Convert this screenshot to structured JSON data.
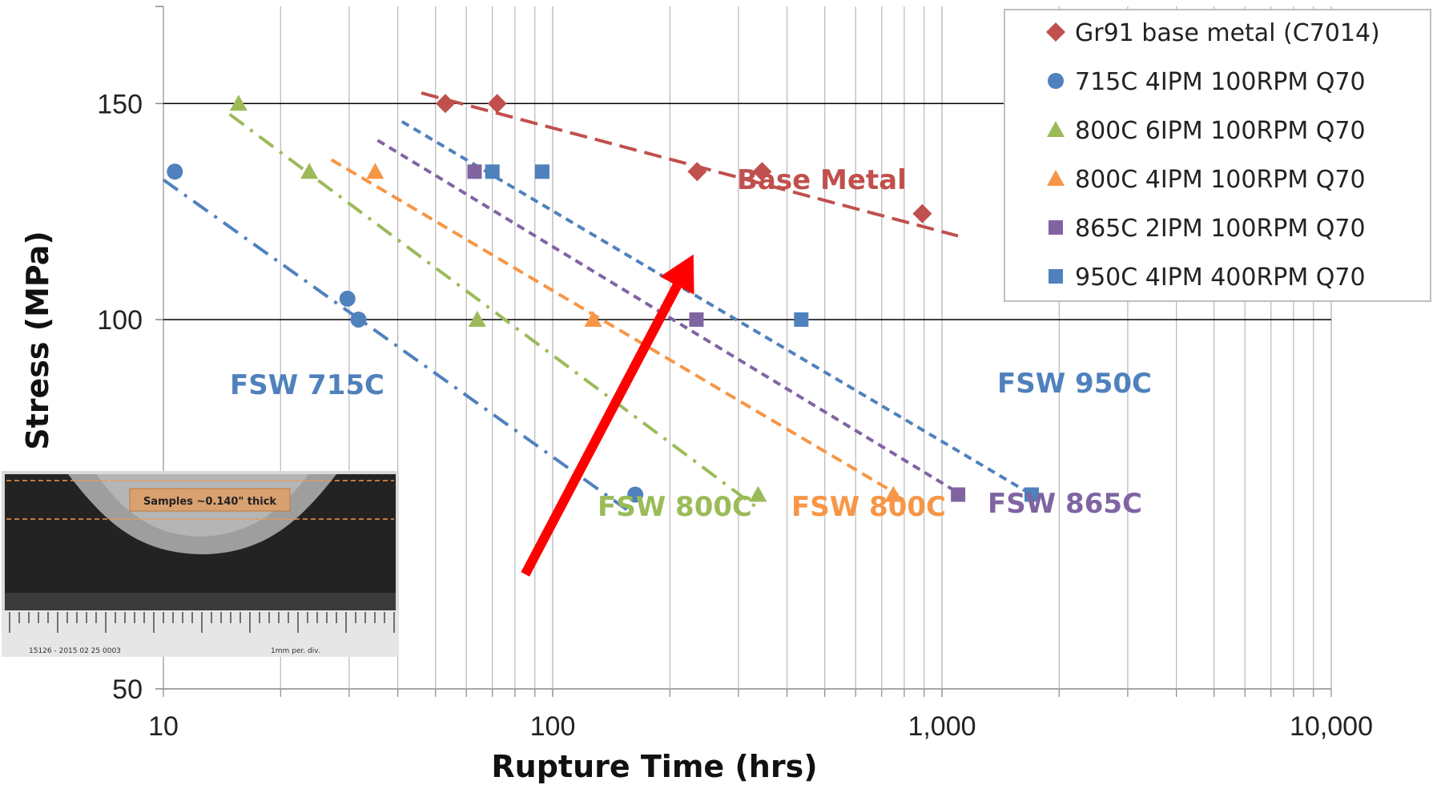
{
  "chart_data": {
    "type": "scatter",
    "x_scale": "log",
    "y_scale": "log",
    "xlim": [
      10,
      10000
    ],
    "ylim": [
      50,
      180
    ],
    "xlabel": "Rupture Time (hrs)",
    "ylabel": "Stress (MPa)",
    "x_ticks": [
      10,
      100,
      1000,
      10000
    ],
    "x_tick_labels": [
      "10",
      "100",
      "1,000",
      "10,000"
    ],
    "y_ticks": [
      50,
      100,
      150
    ],
    "y_tick_labels": [
      "50",
      "100",
      "150"
    ],
    "grid": "log minor vertical lines, horizontal lines at 100 and 150",
    "legend_position": "top-right",
    "series": [
      {
        "name": "Gr91 base metal (C7014)",
        "color": "#c0504d",
        "marker": "diamond",
        "x": [
          53,
          72,
          235,
          345,
          890
        ],
        "y": [
          150,
          150,
          132,
          132,
          122
        ],
        "trend": {
          "x": [
            46,
            1100
          ],
          "y": [
            153,
            117
          ]
        }
      },
      {
        "name": "715C 4IPM 100RPM Q70",
        "color": "#4f81bd",
        "marker": "circle",
        "x": [
          10.7,
          29.7,
          31.7,
          163
        ],
        "y": [
          132,
          104,
          100,
          72
        ],
        "trend": {
          "x": [
            10,
            155
          ],
          "y": [
            130,
            70
          ]
        }
      },
      {
        "name": "800C 6IPM 100RPM Q70",
        "color": "#9bbb59",
        "marker": "triangle",
        "x": [
          15.6,
          23.7,
          64,
          337
        ],
        "y": [
          150,
          132,
          100,
          72
        ],
        "trend": {
          "x": [
            14.8,
            340
          ],
          "y": [
            147,
            70
          ]
        }
      },
      {
        "name": "800C 4IPM 100RPM Q70",
        "color": "#f79646",
        "marker": "triangle",
        "x": [
          35,
          127,
          750
        ],
        "y": [
          132,
          100,
          72
        ],
        "trend": {
          "x": [
            27,
            770
          ],
          "y": [
            135,
            72
          ]
        }
      },
      {
        "name": "865C 2IPM 100RPM Q70",
        "color": "#8064a2",
        "marker": "square",
        "x": [
          63,
          234,
          1100
        ],
        "y": [
          132,
          100,
          72
        ],
        "trend": {
          "x": [
            35.5,
            1120
          ],
          "y": [
            140,
            72
          ]
        }
      },
      {
        "name": "950C 4IPM 400RPM Q70",
        "color": "#4f81bd",
        "marker": "square",
        "x": [
          70,
          94,
          435,
          1700
        ],
        "y": [
          132,
          132,
          100,
          72
        ],
        "trend": {
          "x": [
            41,
            1700
          ],
          "y": [
            145,
            72
          ]
        }
      }
    ],
    "annotations": [
      {
        "text": "Base Metal",
        "color": "#c0504d"
      },
      {
        "text": "FSW 715C",
        "color": "#4f81bd"
      },
      {
        "text": "FSW 800C",
        "color": "#9bbb59"
      },
      {
        "text": "FSW 800C",
        "color": "#f79646"
      },
      {
        "text": "FSW 865C",
        "color": "#8064a2"
      },
      {
        "text": "FSW 950C",
        "color": "#4f81bd"
      }
    ],
    "arrow": {
      "color": "#ff0000",
      "tail": {
        "x": 85,
        "y": 62
      },
      "head": {
        "x": 230,
        "y": 113
      }
    },
    "inset": {
      "label": "Samples ~0.140\" thick",
      "caption_left": "15126 - 2015 02 25 0003",
      "caption_right": "1mm per. div."
    }
  }
}
